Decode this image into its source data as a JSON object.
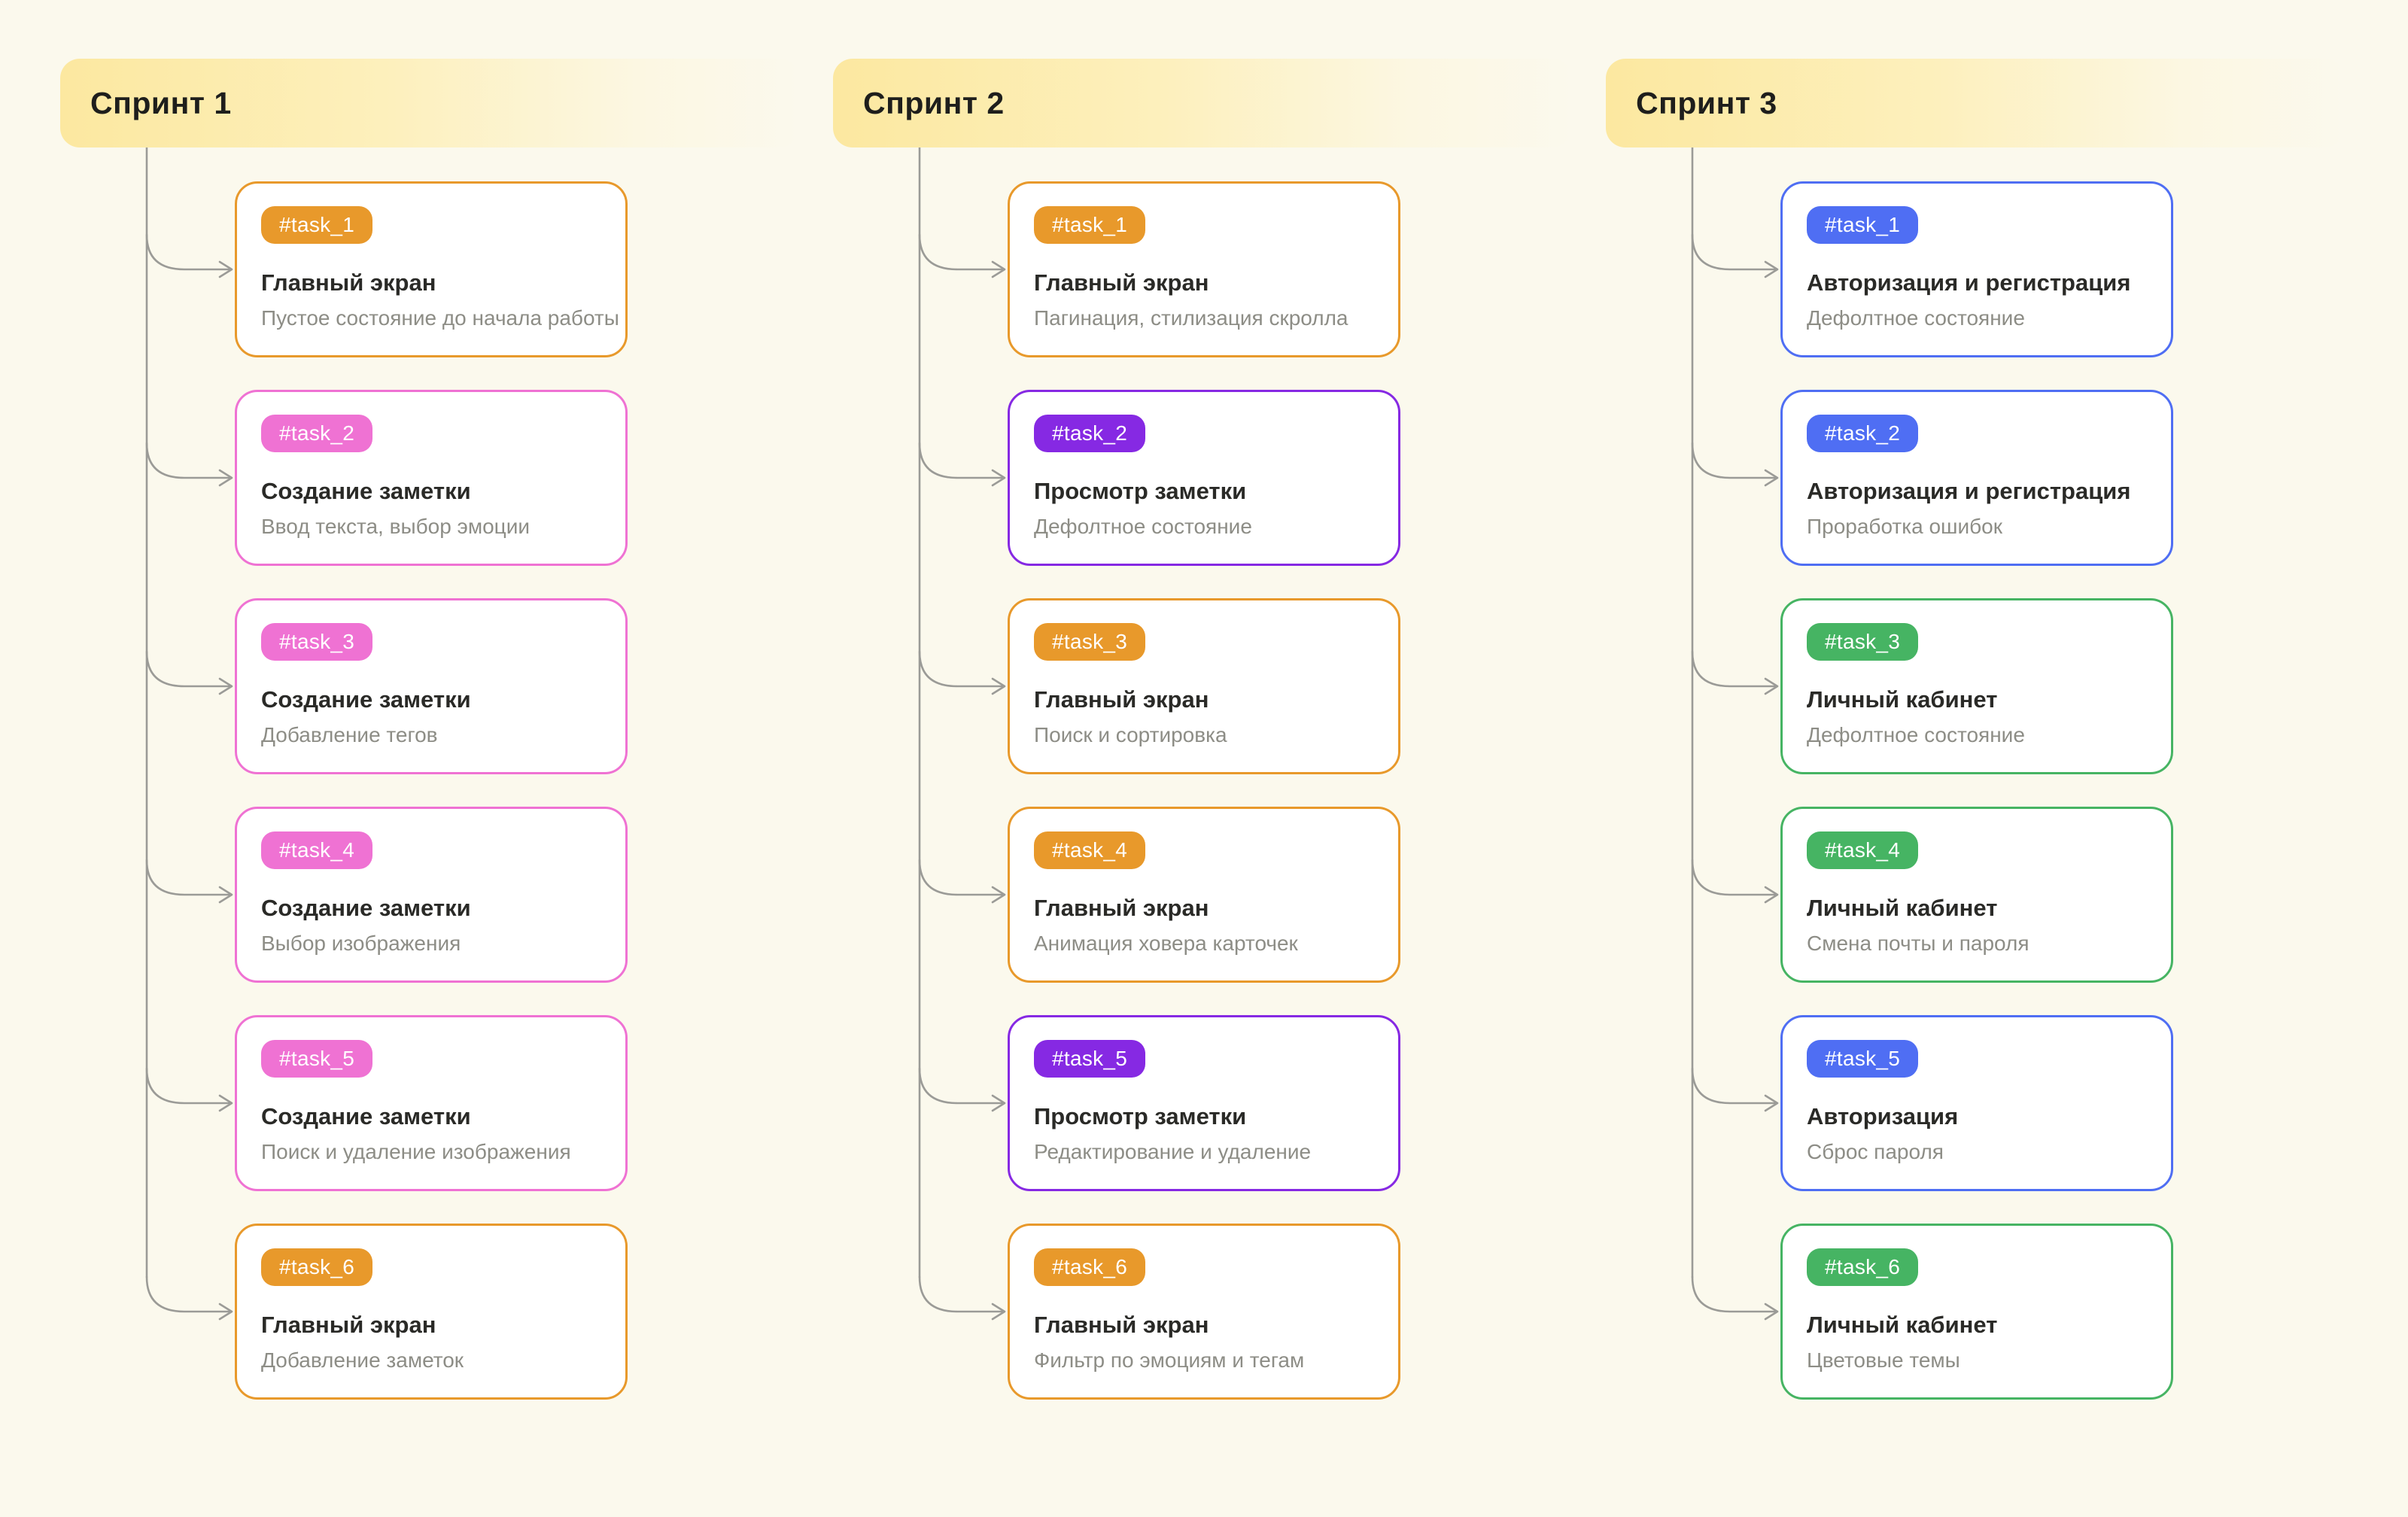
{
  "board": {
    "columns": [
      {
        "title": "Спринт 1",
        "tasks": [
          {
            "tag": "#task_1",
            "color": "orange",
            "title": "Главный экран",
            "subtitle": "Пустое состояние до начала работы"
          },
          {
            "tag": "#task_2",
            "color": "pink",
            "title": "Создание заметки",
            "subtitle": "Ввод текста, выбор эмоции"
          },
          {
            "tag": "#task_3",
            "color": "pink",
            "title": "Создание заметки",
            "subtitle": "Добавление тегов"
          },
          {
            "tag": "#task_4",
            "color": "pink",
            "title": "Создание заметки",
            "subtitle": "Выбор изображения"
          },
          {
            "tag": "#task_5",
            "color": "pink",
            "title": "Создание заметки",
            "subtitle": "Поиск и удаление изображения"
          },
          {
            "tag": "#task_6",
            "color": "orange",
            "title": "Главный экран",
            "subtitle": "Добавление заметок"
          }
        ]
      },
      {
        "title": "Спринт 2",
        "tasks": [
          {
            "tag": "#task_1",
            "color": "orange",
            "title": "Главный экран",
            "subtitle": "Пагинация, стилизация скролла"
          },
          {
            "tag": "#task_2",
            "color": "purple",
            "title": "Просмотр заметки",
            "subtitle": "Дефолтное состояние"
          },
          {
            "tag": "#task_3",
            "color": "orange",
            "title": "Главный экран",
            "subtitle": "Поиск и сортировка"
          },
          {
            "tag": "#task_4",
            "color": "orange",
            "title": "Главный экран",
            "subtitle": "Анимация ховера карточек"
          },
          {
            "tag": "#task_5",
            "color": "purple",
            "title": "Просмотр заметки",
            "subtitle": "Редактирование и удаление"
          },
          {
            "tag": "#task_6",
            "color": "orange",
            "title": "Главный экран",
            "subtitle": "Фильтр по эмоциям и тегам"
          }
        ]
      },
      {
        "title": "Спринт 3",
        "tasks": [
          {
            "tag": "#task_1",
            "color": "blue",
            "title": "Авторизация и регистрация",
            "subtitle": "Дефолтное состояние"
          },
          {
            "tag": "#task_2",
            "color": "blue",
            "title": "Авторизация и регистрация",
            "subtitle": "Проработка ошибок"
          },
          {
            "tag": "#task_3",
            "color": "green",
            "title": "Личный кабинет",
            "subtitle": "Дефолтное состояние"
          },
          {
            "tag": "#task_4",
            "color": "green",
            "title": "Личный кабинет",
            "subtitle": "Смена почты и пароля"
          },
          {
            "tag": "#task_5",
            "color": "blue",
            "title": "Авторизация",
            "subtitle": "Сброс пароля"
          },
          {
            "tag": "#task_6",
            "color": "green",
            "title": "Личный кабинет",
            "subtitle": "Цветовые темы"
          }
        ]
      }
    ]
  },
  "colors": {
    "orange": "#e8992b",
    "pink": "#ef72d3",
    "purple": "#8629e3",
    "blue": "#4f6ef3",
    "green": "#46b463",
    "connector": "#9b9b97",
    "background": "#fbf9ed",
    "header_gradient_start": "#fce8a0",
    "card_background": "#ffffff"
  }
}
